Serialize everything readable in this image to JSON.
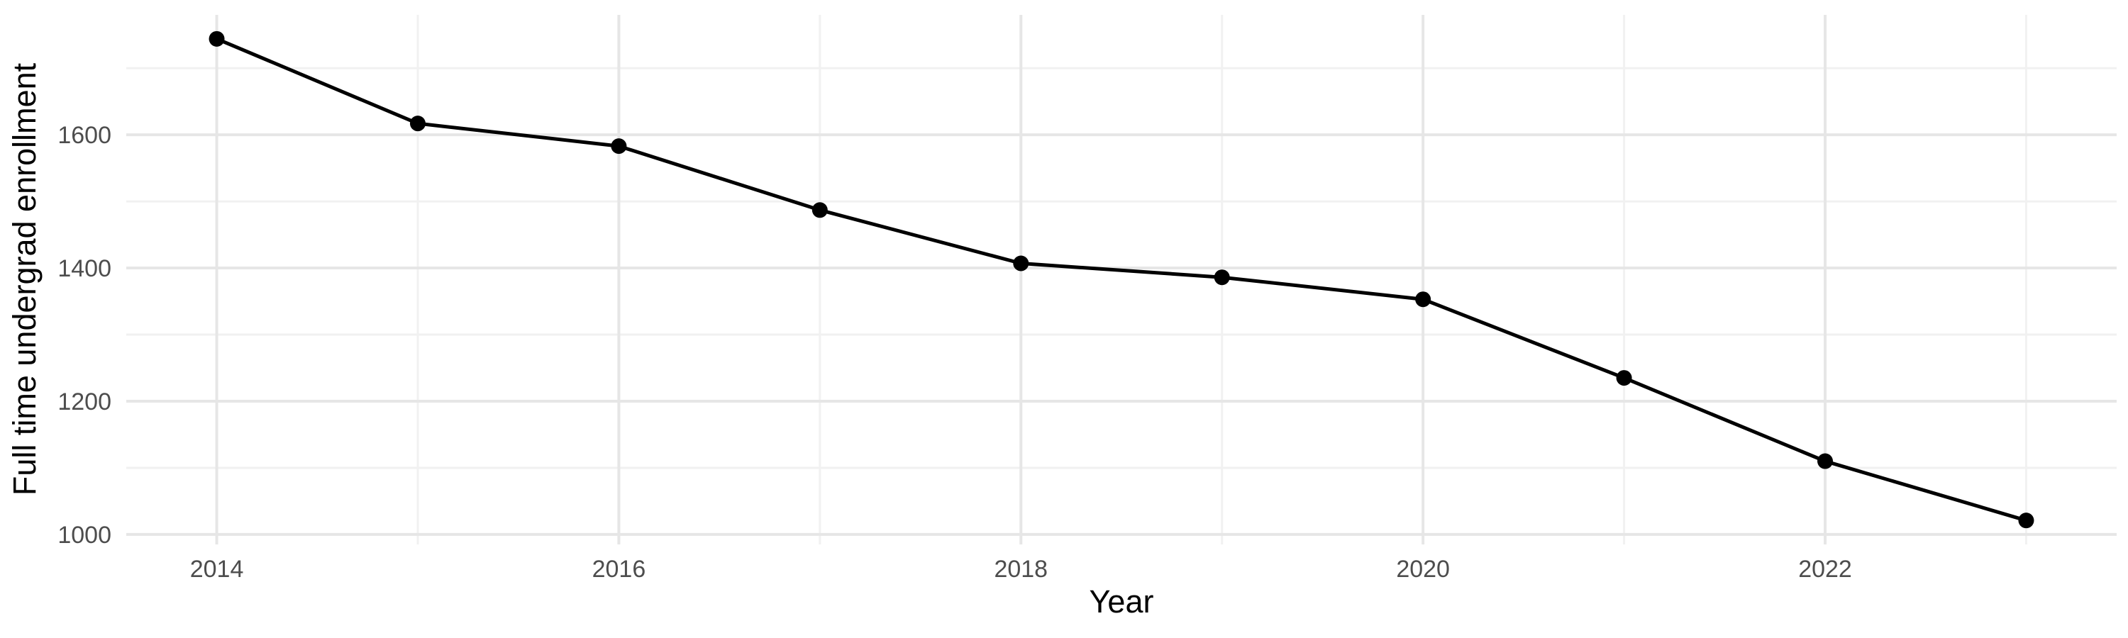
{
  "chart_data": {
    "type": "line",
    "title": "",
    "xlabel": "Year",
    "ylabel": "Full time undergrad enrollment",
    "series": [
      {
        "name": "Full time undergrad enrollment",
        "x": [
          2014,
          2015,
          2016,
          2017,
          2018,
          2019,
          2020,
          2021,
          2022,
          2023
        ],
        "values": [
          1744,
          1617,
          1583,
          1487,
          1407,
          1386,
          1353,
          1235,
          1110,
          1021
        ]
      }
    ],
    "xlim": [
      2013.55,
      2023.45
    ],
    "ylim": [
      985,
      1780
    ],
    "x_major_ticks": [
      2014,
      2016,
      2018,
      2020,
      2022
    ],
    "x_minor_ticks": [
      2015,
      2017,
      2019,
      2021,
      2023
    ],
    "y_major_ticks": [
      1000,
      1200,
      1400,
      1600
    ],
    "y_minor_ticks": [
      1100,
      1300,
      1500,
      1700
    ],
    "grid": "major+minor",
    "legend": "none",
    "marker": "filled-circle",
    "colors": {
      "background": "#ffffff",
      "line": "#000000",
      "point": "#000000",
      "grid_major": "#e6e6e6",
      "grid_minor": "#f1f1f1",
      "tick_label": "#4d4d4d",
      "axis_title": "#000000"
    }
  }
}
